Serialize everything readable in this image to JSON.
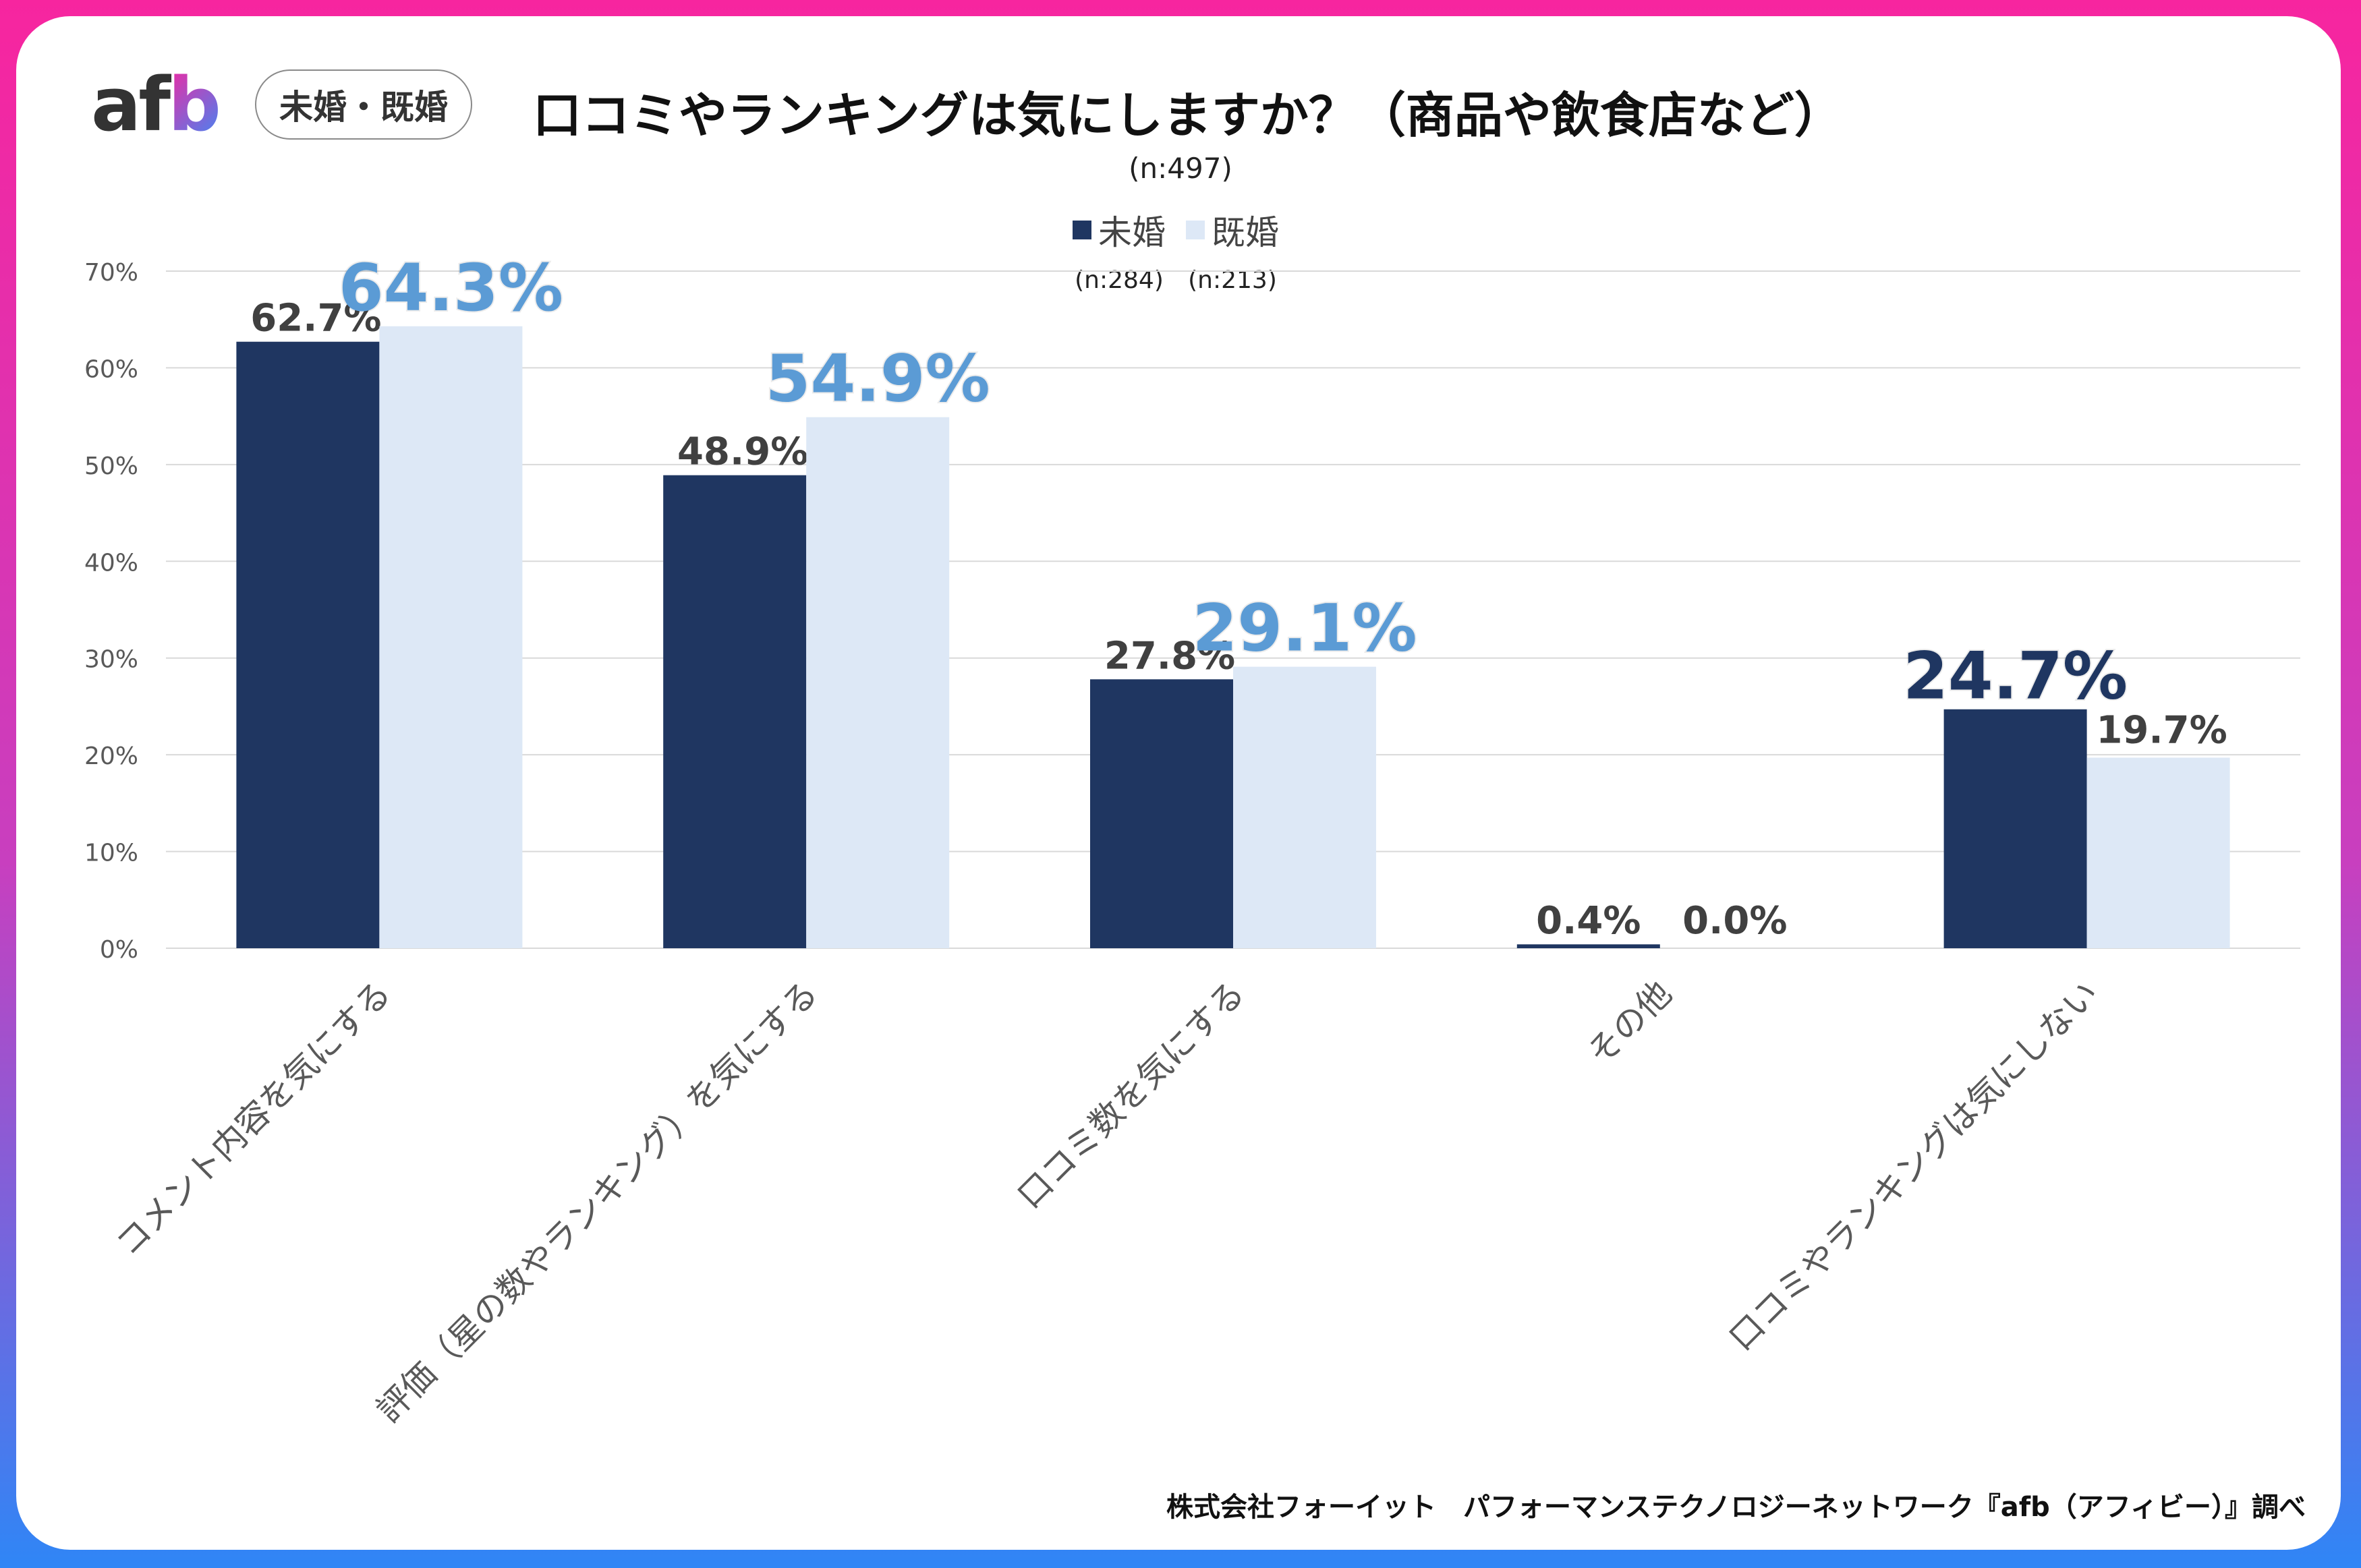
{
  "brand": {
    "logo_text_a": "af",
    "logo_text_b": "b"
  },
  "badge": "未婚・既婚",
  "title": "口コミやランキングは気にしますか？（商品や飲食店など）",
  "sample_total": "(n:497)",
  "legend": [
    {
      "label": "未婚",
      "n": "(n:284)",
      "color": "#1f3661"
    },
    {
      "label": "既婚",
      "n": "(n:213)",
      "color": "#dde8f6"
    }
  ],
  "footer": "株式会社フォーイット　パフォーマンステクノロジーネットワーク『afb（アフィビー）』調べ",
  "chart_data": {
    "type": "bar",
    "title": "口コミやランキングは気にしますか？（商品や飲食店など）",
    "xlabel": "",
    "ylabel": "",
    "ylim": [
      0,
      70
    ],
    "yticks": [
      "0%",
      "10%",
      "20%",
      "30%",
      "40%",
      "50%",
      "60%",
      "70%"
    ],
    "grid": true,
    "legend_position": "top-center",
    "categories": [
      "コメント内容を気にする",
      "評価（星の数やランキング）を気にする",
      "口コミ数を気にする",
      "その他",
      "口コミやランキングは気にしない"
    ],
    "series": [
      {
        "name": "未婚",
        "color": "#1f3661",
        "values": [
          62.7,
          48.9,
          27.8,
          0.4,
          24.7
        ],
        "labels": [
          "62.7%",
          "48.9%",
          "27.8%",
          "0.4%",
          "24.7%"
        ]
      },
      {
        "name": "既婚",
        "color": "#dde8f6",
        "values": [
          64.3,
          54.9,
          29.1,
          0.0,
          19.7
        ],
        "labels": [
          "64.3%",
          "54.9%",
          "29.1%",
          "0.0%",
          "19.7%"
        ]
      }
    ],
    "highlight_colors": {
      "emphasis_light": "#5b9bd5",
      "emphasis_dark": "#1f3661",
      "normal": "#404040"
    }
  }
}
